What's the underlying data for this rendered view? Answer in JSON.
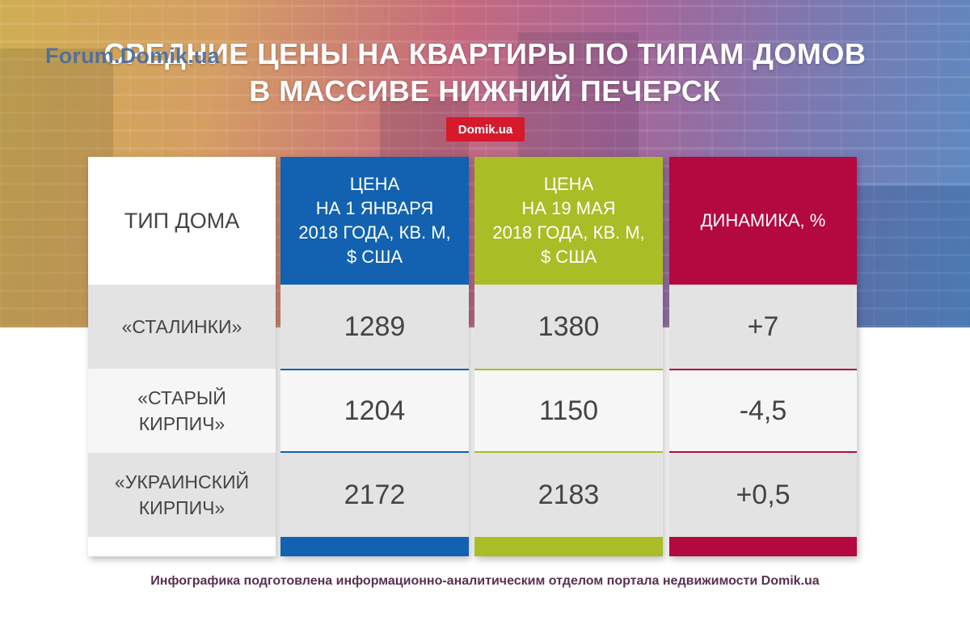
{
  "watermark": "Forum.Domik.ua",
  "title_line1": "СРЕДНИЕ ЦЕНЫ НА КВАРТИРЫ ПО ТИПАМ ДОМОВ",
  "title_line2": "В МАССИВЕ НИЖНИЙ ПЕЧЕРСК",
  "badge": "Domik.ua",
  "colors": {
    "jan": "#1262b1",
    "may": "#a9bd26",
    "dynamics": "#b3093f",
    "badge": "#d6192b"
  },
  "chart_data": {
    "type": "table",
    "columns": [
      "ТИП ДОМА",
      "ЦЕНА\nНА 1 ЯНВАРЯ\n2018 ГОДА, КВ. М,\n$ США",
      "ЦЕНА\nНА 19 МАЯ\n2018 ГОДА, КВ. М,\n$ США",
      "ДИНАМИКА, %"
    ],
    "rows": [
      {
        "type": "«СТАЛИНКИ»",
        "jan": "1289",
        "may": "1380",
        "dynamics": "+7"
      },
      {
        "type": "«СТАРЫЙ\nКИРПИЧ»",
        "jan": "1204",
        "may": "1150",
        "dynamics": "-4,5"
      },
      {
        "type": "«УКРАИНСКИЙ\nКИРПИЧ»",
        "jan": "2172",
        "may": "2183",
        "dynamics": "+0,5"
      }
    ]
  },
  "footer": "Инфографика подготовлена информационно-аналитическим отделом портала недвижимости Domik.ua"
}
